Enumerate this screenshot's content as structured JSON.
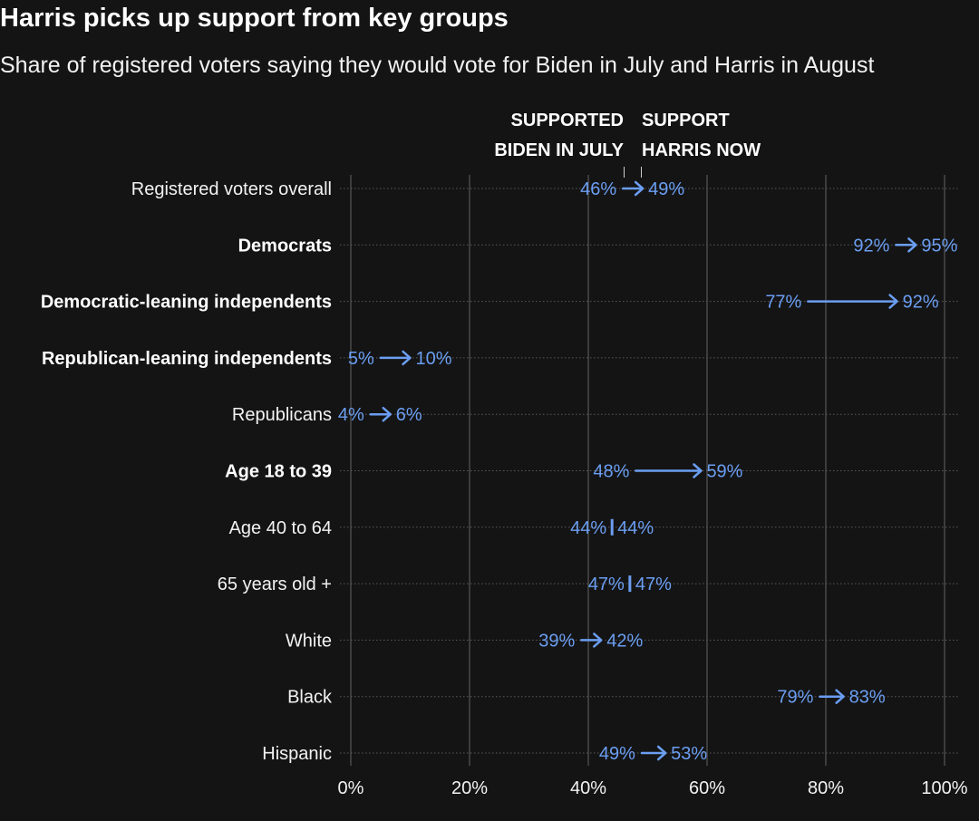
{
  "chart_data": {
    "type": "arrow-dot",
    "title": "Harris picks up support from key groups",
    "subtitle": "Share of registered voters saying they would vote for Biden in July and Harris in August",
    "header_left": [
      "SUPPORTED",
      "BIDEN IN JULY"
    ],
    "header_right": [
      "SUPPORT",
      "HARRIS NOW"
    ],
    "series_names": [
      "Supported Biden in July",
      "Support Harris now"
    ],
    "xlim": [
      0,
      100
    ],
    "x_ticks": [
      0,
      20,
      40,
      60,
      80,
      100
    ],
    "x_tick_labels": [
      "0%",
      "20%",
      "40%",
      "60%",
      "80%",
      "100%"
    ],
    "accent_color": "#6b9ef2",
    "rows": [
      {
        "label": "Registered voters overall",
        "bold": false,
        "from": 46,
        "to": 49,
        "from_label": "46%",
        "to_label": "49%"
      },
      {
        "label": "Democrats",
        "bold": true,
        "from": 92,
        "to": 95,
        "from_label": "92%",
        "to_label": "95%"
      },
      {
        "label": "Democratic-leaning independents",
        "bold": true,
        "from": 77,
        "to": 92,
        "from_label": "77%",
        "to_label": "92%"
      },
      {
        "label": "Republican-leaning independents",
        "bold": true,
        "from": 5,
        "to": 10,
        "from_label": "5%",
        "to_label": "10%"
      },
      {
        "label": "Republicans",
        "bold": false,
        "from": 4,
        "to": 6,
        "from_label": "4%",
        "to_label": "6%"
      },
      {
        "label": "Age 18 to 39",
        "bold": true,
        "from": 48,
        "to": 59,
        "from_label": "48%",
        "to_label": "59%"
      },
      {
        "label": "Age 40 to 64",
        "bold": false,
        "from": 44,
        "to": 44,
        "from_label": "44%",
        "to_label": "44%"
      },
      {
        "label": "65 years old +",
        "bold": false,
        "from": 47,
        "to": 47,
        "from_label": "47%",
        "to_label": "47%"
      },
      {
        "label": "White",
        "bold": false,
        "from": 39,
        "to": 42,
        "from_label": "39%",
        "to_label": "42%"
      },
      {
        "label": "Black",
        "bold": false,
        "from": 79,
        "to": 83,
        "from_label": "79%",
        "to_label": "83%"
      },
      {
        "label": "Hispanic",
        "bold": false,
        "from": 49,
        "to": 53,
        "from_label": "49%",
        "to_label": "53%"
      }
    ]
  }
}
